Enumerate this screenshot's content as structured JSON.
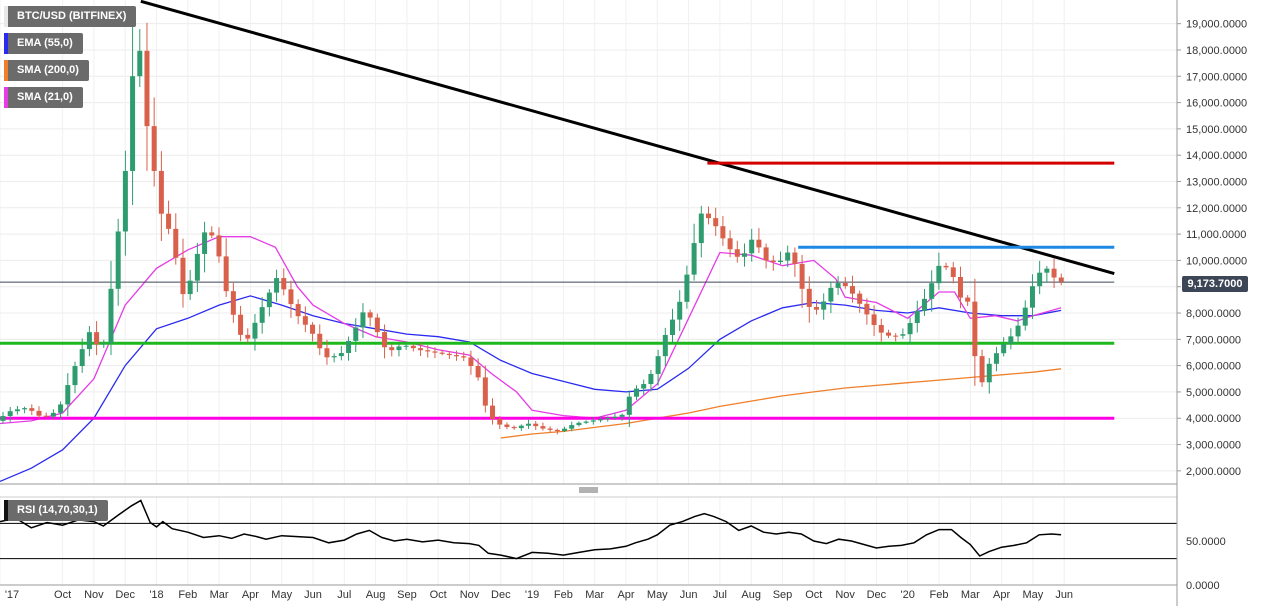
{
  "chart_data": [
    {
      "type": "candlestick",
      "symbol_label": "BTC/USD (BITFINEX)",
      "indicators": [
        {
          "name": "EMA (55,0)",
          "color": "#2b2bf0"
        },
        {
          "name": "SMA (200,0)",
          "color": "#f07f2a"
        },
        {
          "name": "SMA (21,0)",
          "color": "#e53ce5"
        }
      ],
      "last_price": "9,173.7000",
      "y_ticks": [
        "19,000.0000",
        "18,000.0000",
        "17,000.0000",
        "16,000.0000",
        "15,000.0000",
        "14,000.0000",
        "13,000.0000",
        "12,000.0000",
        "11,000.0000",
        "10,000.0000",
        "9,000.0000",
        "8,000.0000",
        "7,000.0000",
        "6,000.0000",
        "5,000.0000",
        "4,000.0000",
        "3,000.0000",
        "2,000.0000"
      ],
      "y_tick_values": [
        19000,
        18000,
        17000,
        16000,
        15000,
        14000,
        13000,
        12000,
        11000,
        10000,
        9000,
        8000,
        7000,
        6000,
        5000,
        4000,
        3000,
        2000
      ],
      "ylim": [
        1500,
        19900
      ],
      "x_labels": [
        {
          "label": "'17",
          "t": 0
        },
        {
          "label": "Oct",
          "t": 2
        },
        {
          "label": "Nov",
          "t": 3
        },
        {
          "label": "Dec",
          "t": 4
        },
        {
          "label": "'18",
          "t": 5
        },
        {
          "label": "Feb",
          "t": 6
        },
        {
          "label": "Mar",
          "t": 7
        },
        {
          "label": "Apr",
          "t": 8
        },
        {
          "label": "May",
          "t": 9
        },
        {
          "label": "Jun",
          "t": 10
        },
        {
          "label": "Jul",
          "t": 11
        },
        {
          "label": "Aug",
          "t": 12
        },
        {
          "label": "Sep",
          "t": 13
        },
        {
          "label": "Oct",
          "t": 14
        },
        {
          "label": "Nov",
          "t": 15
        },
        {
          "label": "Dec",
          "t": 16
        },
        {
          "label": "'19",
          "t": 17
        },
        {
          "label": "Feb",
          "t": 18
        },
        {
          "label": "Mar",
          "t": 19
        },
        {
          "label": "Apr",
          "t": 20
        },
        {
          "label": "May",
          "t": 21
        },
        {
          "label": "Jun",
          "t": 22
        },
        {
          "label": "Jul",
          "t": 23
        },
        {
          "label": "Aug",
          "t": 24
        },
        {
          "label": "Sep",
          "t": 25
        },
        {
          "label": "Oct",
          "t": 26
        },
        {
          "label": "Nov",
          "t": 27
        },
        {
          "label": "Dec",
          "t": 28
        },
        {
          "label": "'20",
          "t": 29
        },
        {
          "label": "Feb",
          "t": 30
        },
        {
          "label": "Mar",
          "t": 31
        },
        {
          "label": "Apr",
          "t": 32
        },
        {
          "label": "May",
          "t": 33
        },
        {
          "label": "Jun",
          "t": 34
        }
      ],
      "price_anchors": [
        [
          0.0,
          3900
        ],
        [
          0.5,
          4300
        ],
        [
          1.0,
          4400
        ],
        [
          1.5,
          4000
        ],
        [
          2.0,
          4300
        ],
        [
          2.5,
          5900
        ],
        [
          3.0,
          7300
        ],
        [
          3.4,
          6400
        ],
        [
          3.8,
          10000
        ],
        [
          4.2,
          14000
        ],
        [
          4.5,
          19300
        ],
        [
          4.8,
          15300
        ],
        [
          5.0,
          14000
        ],
        [
          5.2,
          12000
        ],
        [
          5.6,
          11000
        ],
        [
          6.0,
          8600
        ],
        [
          6.3,
          9500
        ],
        [
          6.6,
          11100
        ],
        [
          7.0,
          10900
        ],
        [
          7.4,
          8600
        ],
        [
          7.8,
          7200
        ],
        [
          8.0,
          6900
        ],
        [
          8.5,
          8200
        ],
        [
          9.0,
          9400
        ],
        [
          9.4,
          8400
        ],
        [
          9.8,
          7600
        ],
        [
          10.0,
          7500
        ],
        [
          10.5,
          6300
        ],
        [
          11.0,
          6400
        ],
        [
          11.4,
          7200
        ],
        [
          11.8,
          8200
        ],
        [
          12.1,
          7500
        ],
        [
          12.5,
          6500
        ],
        [
          13.0,
          6800
        ],
        [
          13.5,
          6600
        ],
        [
          14.0,
          6500
        ],
        [
          14.5,
          6400
        ],
        [
          15.0,
          6300
        ],
        [
          15.4,
          5600
        ],
        [
          15.7,
          4200
        ],
        [
          16.0,
          3800
        ],
        [
          16.5,
          3600
        ],
        [
          17.0,
          3800
        ],
        [
          17.5,
          3600
        ],
        [
          18.0,
          3500
        ],
        [
          18.5,
          3800
        ],
        [
          19.0,
          3900
        ],
        [
          19.5,
          4000
        ],
        [
          20.0,
          4100
        ],
        [
          20.3,
          5000
        ],
        [
          20.7,
          5300
        ],
        [
          21.0,
          5800
        ],
        [
          21.4,
          7200
        ],
        [
          21.8,
          8200
        ],
        [
          22.2,
          10000
        ],
        [
          22.5,
          11800
        ],
        [
          22.7,
          11700
        ],
        [
          23.0,
          11300
        ],
        [
          23.4,
          10500
        ],
        [
          23.8,
          10000
        ],
        [
          24.2,
          10900
        ],
        [
          24.6,
          10000
        ],
        [
          25.0,
          9900
        ],
        [
          25.3,
          10300
        ],
        [
          25.5,
          10000
        ],
        [
          25.7,
          9100
        ],
        [
          26.0,
          8200
        ],
        [
          26.3,
          8100
        ],
        [
          26.7,
          9000
        ],
        [
          27.0,
          9200
        ],
        [
          27.4,
          8700
        ],
        [
          27.8,
          8000
        ],
        [
          28.2,
          7300
        ],
        [
          28.6,
          7100
        ],
        [
          29.0,
          7200
        ],
        [
          29.4,
          8000
        ],
        [
          29.8,
          8800
        ],
        [
          30.1,
          9800
        ],
        [
          30.5,
          9700
        ],
        [
          30.8,
          8600
        ],
        [
          31.1,
          8400
        ],
        [
          31.4,
          5000
        ],
        [
          31.7,
          6000
        ],
        [
          32.1,
          6700
        ],
        [
          32.5,
          7200
        ],
        [
          32.8,
          7800
        ],
        [
          33.0,
          8700
        ],
        [
          33.3,
          9500
        ],
        [
          33.6,
          9700
        ],
        [
          33.9,
          9200
        ]
      ],
      "ema_55": [
        [
          0.0,
          1600
        ],
        [
          1.0,
          2100
        ],
        [
          2.0,
          2800
        ],
        [
          3.0,
          4000
        ],
        [
          4.0,
          6000
        ],
        [
          5.0,
          7400
        ],
        [
          6.0,
          7800
        ],
        [
          7.0,
          8300
        ],
        [
          8.0,
          8650
        ],
        [
          9.0,
          8300
        ],
        [
          10.0,
          7900
        ],
        [
          11.0,
          7600
        ],
        [
          12.0,
          7400
        ],
        [
          13.0,
          7200
        ],
        [
          14.0,
          7100
        ],
        [
          15.0,
          6900
        ],
        [
          16.0,
          6200
        ],
        [
          17.0,
          5700
        ],
        [
          18.0,
          5400
        ],
        [
          19.0,
          5100
        ],
        [
          20.0,
          5000
        ],
        [
          21.0,
          5100
        ],
        [
          22.0,
          5900
        ],
        [
          23.0,
          7000
        ],
        [
          24.0,
          7700
        ],
        [
          25.0,
          8200
        ],
        [
          26.0,
          8400
        ],
        [
          27.0,
          8300
        ],
        [
          28.0,
          8100
        ],
        [
          29.0,
          8000
        ],
        [
          30.0,
          8200
        ],
        [
          31.0,
          8000
        ],
        [
          32.0,
          7900
        ],
        [
          33.0,
          7900
        ],
        [
          33.9,
          8100
        ]
      ],
      "sma_21": [
        [
          0.0,
          3800
        ],
        [
          1.0,
          3900
        ],
        [
          2.0,
          4200
        ],
        [
          3.0,
          5500
        ],
        [
          4.0,
          8300
        ],
        [
          5.0,
          9700
        ],
        [
          6.0,
          10400
        ],
        [
          7.0,
          10900
        ],
        [
          8.0,
          10900
        ],
        [
          8.8,
          10500
        ],
        [
          9.5,
          9000
        ],
        [
          10.0,
          8300
        ],
        [
          11.0,
          7600
        ],
        [
          12.0,
          7100
        ],
        [
          13.0,
          6900
        ],
        [
          14.0,
          6600
        ],
        [
          15.0,
          6400
        ],
        [
          15.7,
          5700
        ],
        [
          16.5,
          5000
        ],
        [
          17.0,
          4300
        ],
        [
          18.0,
          4100
        ],
        [
          19.0,
          4000
        ],
        [
          20.0,
          4300
        ],
        [
          21.0,
          5300
        ],
        [
          22.0,
          7800
        ],
        [
          23.0,
          10300
        ],
        [
          24.0,
          10200
        ],
        [
          25.0,
          9800
        ],
        [
          26.0,
          10000
        ],
        [
          26.7,
          9300
        ],
        [
          27.0,
          8600
        ],
        [
          28.0,
          8400
        ],
        [
          29.0,
          7800
        ],
        [
          29.6,
          8400
        ],
        [
          30.0,
          8800
        ],
        [
          30.5,
          8800
        ],
        [
          31.0,
          7800
        ],
        [
          31.8,
          7900
        ],
        [
          32.5,
          7700
        ],
        [
          33.0,
          7900
        ],
        [
          33.9,
          8200
        ]
      ],
      "sma_200": [
        [
          16.0,
          3250
        ],
        [
          17.0,
          3400
        ],
        [
          18.0,
          3500
        ],
        [
          19.0,
          3650
        ],
        [
          20.0,
          3800
        ],
        [
          21.0,
          4000
        ],
        [
          22.0,
          4200
        ],
        [
          23.0,
          4450
        ],
        [
          24.0,
          4650
        ],
        [
          25.0,
          4850
        ],
        [
          26.0,
          5000
        ],
        [
          27.0,
          5150
        ],
        [
          28.0,
          5250
        ],
        [
          29.0,
          5350
        ],
        [
          30.0,
          5450
        ],
        [
          31.0,
          5550
        ],
        [
          32.0,
          5650
        ],
        [
          33.0,
          5750
        ],
        [
          33.9,
          5880
        ]
      ],
      "trendlines": [
        {
          "kind": "descending",
          "color": "#000000",
          "from": [
            4.5,
            19850
          ],
          "to": [
            35.6,
            9500
          ]
        },
        {
          "kind": "resistance",
          "color": "#d40000",
          "from": [
            22.6,
            13700
          ],
          "to": [
            35.6,
            13700
          ]
        },
        {
          "kind": "resistance",
          "color": "#1e88e5",
          "from": [
            25.5,
            10500
          ],
          "to": [
            35.6,
            10500
          ]
        },
        {
          "kind": "support",
          "color": "#1db81d",
          "from": [
            0.0,
            6850
          ],
          "to": [
            35.6,
            6850
          ]
        },
        {
          "kind": "support",
          "color": "#ff00e5",
          "from": [
            0.0,
            4000
          ],
          "to": [
            35.6,
            4000
          ]
        },
        {
          "kind": "last-price",
          "color": "#3d4657",
          "from": [
            0.0,
            9173.7
          ],
          "to": [
            35.6,
            9173.7
          ]
        }
      ]
    },
    {
      "type": "line",
      "label": "RSI (14,70,30,1)",
      "y_ticks": [
        "50.0000",
        "0.0000"
      ],
      "y_tick_values": [
        50,
        0
      ],
      "ylim": [
        0,
        100
      ],
      "levels": [
        70,
        30
      ],
      "values": [
        [
          0.0,
          72
        ],
        [
          0.5,
          76
        ],
        [
          1.0,
          65
        ],
        [
          1.5,
          71
        ],
        [
          2.0,
          68
        ],
        [
          2.5,
          74
        ],
        [
          3.0,
          72
        ],
        [
          3.3,
          67
        ],
        [
          3.8,
          80
        ],
        [
          4.2,
          90
        ],
        [
          4.5,
          96
        ],
        [
          4.8,
          71
        ],
        [
          5.0,
          66
        ],
        [
          5.2,
          72
        ],
        [
          5.5,
          64
        ],
        [
          6.0,
          60
        ],
        [
          6.5,
          54
        ],
        [
          7.0,
          56
        ],
        [
          7.4,
          53
        ],
        [
          7.8,
          58
        ],
        [
          8.2,
          55
        ],
        [
          8.5,
          52
        ],
        [
          9.0,
          56
        ],
        [
          9.5,
          55
        ],
        [
          10.0,
          54
        ],
        [
          10.5,
          48
        ],
        [
          11.0,
          51
        ],
        [
          11.4,
          58
        ],
        [
          11.8,
          62
        ],
        [
          12.2,
          54
        ],
        [
          12.6,
          50
        ],
        [
          13.0,
          52
        ],
        [
          13.5,
          49
        ],
        [
          14.0,
          51
        ],
        [
          14.5,
          48
        ],
        [
          15.0,
          47
        ],
        [
          15.3,
          45
        ],
        [
          15.6,
          36
        ],
        [
          16.0,
          34
        ],
        [
          16.5,
          30
        ],
        [
          17.0,
          37
        ],
        [
          17.5,
          36
        ],
        [
          18.0,
          34
        ],
        [
          18.5,
          37
        ],
        [
          19.0,
          40
        ],
        [
          19.5,
          41
        ],
        [
          20.0,
          44
        ],
        [
          20.3,
          48
        ],
        [
          20.7,
          52
        ],
        [
          21.0,
          57
        ],
        [
          21.4,
          68
        ],
        [
          21.8,
          72
        ],
        [
          22.2,
          78
        ],
        [
          22.5,
          81
        ],
        [
          22.8,
          78
        ],
        [
          23.2,
          72
        ],
        [
          23.6,
          62
        ],
        [
          24.0,
          67
        ],
        [
          24.4,
          60
        ],
        [
          24.8,
          58
        ],
        [
          25.2,
          60
        ],
        [
          25.6,
          58
        ],
        [
          26.0,
          50
        ],
        [
          26.4,
          47
        ],
        [
          26.8,
          52
        ],
        [
          27.2,
          50
        ],
        [
          27.6,
          46
        ],
        [
          28.0,
          42
        ],
        [
          28.4,
          44
        ],
        [
          28.8,
          45
        ],
        [
          29.2,
          48
        ],
        [
          29.6,
          57
        ],
        [
          30.0,
          63
        ],
        [
          30.4,
          63
        ],
        [
          30.7,
          54
        ],
        [
          31.0,
          46
        ],
        [
          31.3,
          33
        ],
        [
          31.6,
          38
        ],
        [
          32.0,
          43
        ],
        [
          32.4,
          45
        ],
        [
          32.8,
          48
        ],
        [
          33.2,
          57
        ],
        [
          33.6,
          58
        ],
        [
          33.9,
          57
        ]
      ]
    }
  ]
}
